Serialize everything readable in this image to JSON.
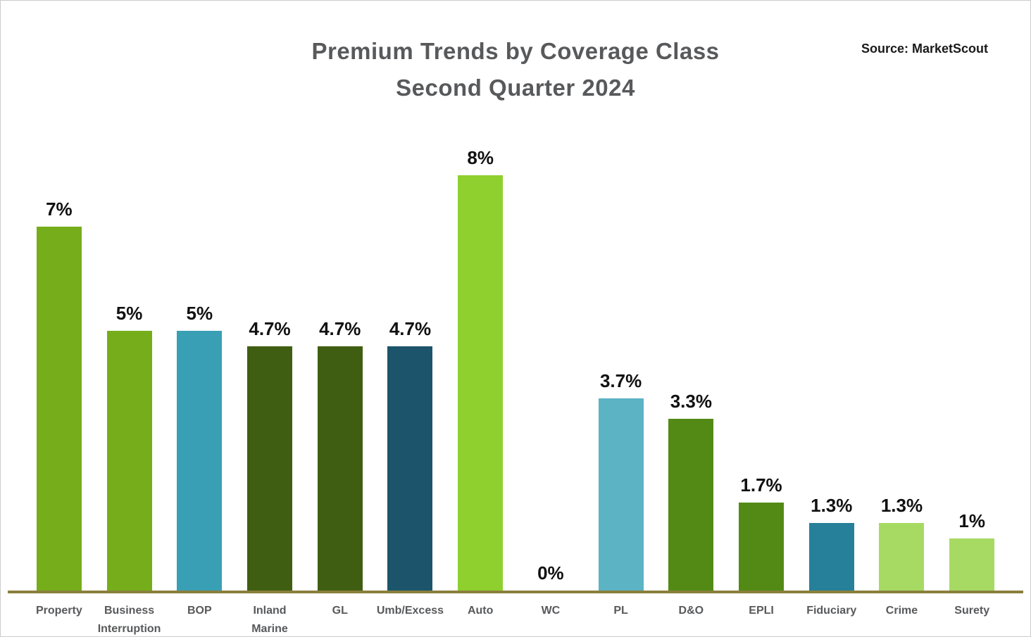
{
  "title": {
    "line1": "Premium Trends by Coverage Class",
    "line2": "Second Quarter 2024"
  },
  "source": "Source: MarketScout",
  "colors": {
    "title_text": "#58595b",
    "category_text": "#58595b",
    "value_text": "#111111",
    "axis_line": "#8a7f3c",
    "background": "#ffffff"
  },
  "chart_data": {
    "type": "bar",
    "title": "Premium Trends by Coverage Class",
    "subtitle": "Second Quarter 2024",
    "source": "Source: MarketScout",
    "xlabel": "",
    "ylabel": "",
    "ylim": [
      0,
      8.5
    ],
    "grid": false,
    "legend": false,
    "categories": [
      "Property",
      "Business Interruption",
      "BOP",
      "Inland Marine",
      "GL",
      "Umb/Excess",
      "Auto",
      "WC",
      "PL",
      "D&O",
      "EPLI",
      "Fiduciary",
      "Crime",
      "Surety"
    ],
    "values": [
      7,
      5,
      5,
      4.7,
      4.7,
      4.7,
      8,
      0,
      3.7,
      3.3,
      1.7,
      1.3,
      1.3,
      1
    ],
    "value_labels": [
      "7%",
      "5%",
      "5%",
      "4.7%",
      "4.7%",
      "4.7%",
      "8%",
      "0%",
      "3.7%",
      "3.3%",
      "1.7%",
      "1.3%",
      "1.3%",
      "1%"
    ],
    "bar_colors": [
      "#76ad1b",
      "#76ad1b",
      "#399fb4",
      "#405e11",
      "#405e11",
      "#1c556b",
      "#8fd02f",
      null,
      "#5bb3c4",
      "#538a15",
      "#538a15",
      "#26809a",
      "#a7da62",
      "#a7da62"
    ]
  }
}
